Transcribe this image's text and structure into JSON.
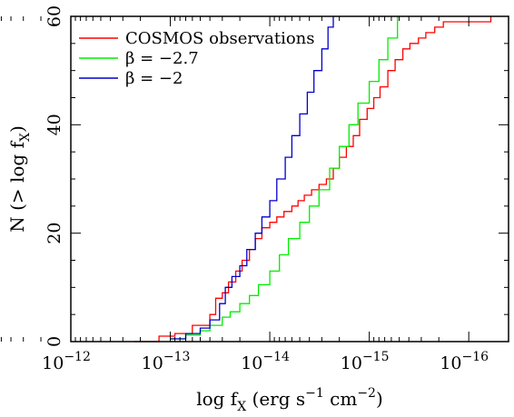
{
  "chart_data": {
    "type": "line",
    "title": "",
    "xlabel_parts": {
      "pre": "log f",
      "sub": "X",
      "mid": " (erg s",
      "sup1": "−1",
      "mid2": " cm",
      "sup2": "−2",
      "post": ")"
    },
    "ylabel_parts": {
      "pre": "N (> log f",
      "sub": "X",
      "post": ")"
    },
    "x_scale": "log",
    "x_axis_reversed": true,
    "x_ticks": [
      {
        "value": 1e-12,
        "label_base": "10",
        "label_exp": "−12"
      },
      {
        "value": 1e-13,
        "label_base": "10",
        "label_exp": "−13"
      },
      {
        "value": 1e-14,
        "label_base": "10",
        "label_exp": "−14"
      },
      {
        "value": 1e-15,
        "label_base": "10",
        "label_exp": "−15"
      },
      {
        "value": 1e-16,
        "label_base": "10",
        "label_exp": "−16"
      }
    ],
    "xlim": [
      1e-12,
      6e-17
    ],
    "ylim": [
      0,
      60
    ],
    "y_ticks": [
      0,
      20,
      40,
      60
    ],
    "legend_position": "top-left",
    "series": [
      {
        "name": "COSMOS observations",
        "color": "#ff0000",
        "x": [
          2.3e-13,
          1.3e-13,
          9e-14,
          6e-14,
          4e-14,
          3.5e-14,
          3e-14,
          2.6e-14,
          2.2e-14,
          1.9e-14,
          1.6e-14,
          1.4e-14,
          1.2e-14,
          1e-14,
          8.5e-15,
          7.2e-15,
          6e-15,
          5.2e-15,
          4.5e-15,
          3.8e-15,
          3.2e-15,
          2.7e-15,
          2.3e-15,
          2e-15,
          1.7e-15,
          1.45e-15,
          1.25e-15,
          1.05e-15,
          9e-16,
          7.8e-16,
          6.5e-16,
          5.5e-16,
          4.6e-16,
          3.9e-16,
          3.2e-16,
          2.7e-16,
          2.2e-16,
          1.8e-16,
          1.4e-16,
          1.1e-16,
          8e-17,
          6e-17
        ],
        "y": [
          0,
          1,
          1.5,
          3,
          5,
          8,
          9,
          11,
          13,
          15,
          17,
          19,
          21,
          22,
          23,
          24,
          25,
          26,
          27,
          28,
          29,
          30,
          32,
          34,
          36,
          38,
          41,
          43,
          45,
          47,
          50,
          52,
          54,
          55,
          56,
          57,
          58,
          59,
          59,
          59,
          59,
          60
        ]
      },
      {
        "name": "β = −2.7",
        "color": "#00ee00",
        "x": [
          1e-13,
          7e-14,
          5e-14,
          4e-14,
          3e-14,
          2.5e-14,
          2e-14,
          1.6e-14,
          1.3e-14,
          1e-14,
          8e-15,
          6.5e-15,
          5e-15,
          4e-15,
          3.2e-15,
          2.5e-15,
          2e-15,
          1.6e-15,
          1.3e-15,
          1e-15,
          8e-16,
          6.5e-16,
          5.2e-16
        ],
        "y": [
          0.5,
          1.2,
          2,
          3,
          4.5,
          5.5,
          7,
          8.5,
          10.5,
          13,
          16,
          19,
          22,
          25,
          28,
          32,
          36,
          40,
          44,
          48,
          52,
          56,
          60
        ]
      },
      {
        "name": "β = −2",
        "color": "#0000cc",
        "x": [
          1e-13,
          7e-14,
          5e-14,
          4e-14,
          3.2e-14,
          2.8e-14,
          2.4e-14,
          2e-14,
          1.7e-14,
          1.4e-14,
          1.2e-14,
          1e-14,
          8.5e-15,
          7e-15,
          6e-15,
          5e-15,
          4.2e-15,
          3.6e-15,
          3e-15,
          2.6e-15,
          2.3e-15
        ],
        "y": [
          0.5,
          1.5,
          2.5,
          4,
          7,
          10,
          12,
          14,
          17,
          20,
          23,
          26,
          30,
          34,
          38,
          42,
          46,
          50,
          54,
          58,
          60
        ]
      }
    ]
  },
  "legend": {
    "items": [
      {
        "label": "COSMOS observations",
        "color": "#ff0000"
      },
      {
        "label": "β  =  −2.7",
        "color": "#00ee00"
      },
      {
        "label": "β  =  −2",
        "color": "#0000cc"
      }
    ]
  }
}
